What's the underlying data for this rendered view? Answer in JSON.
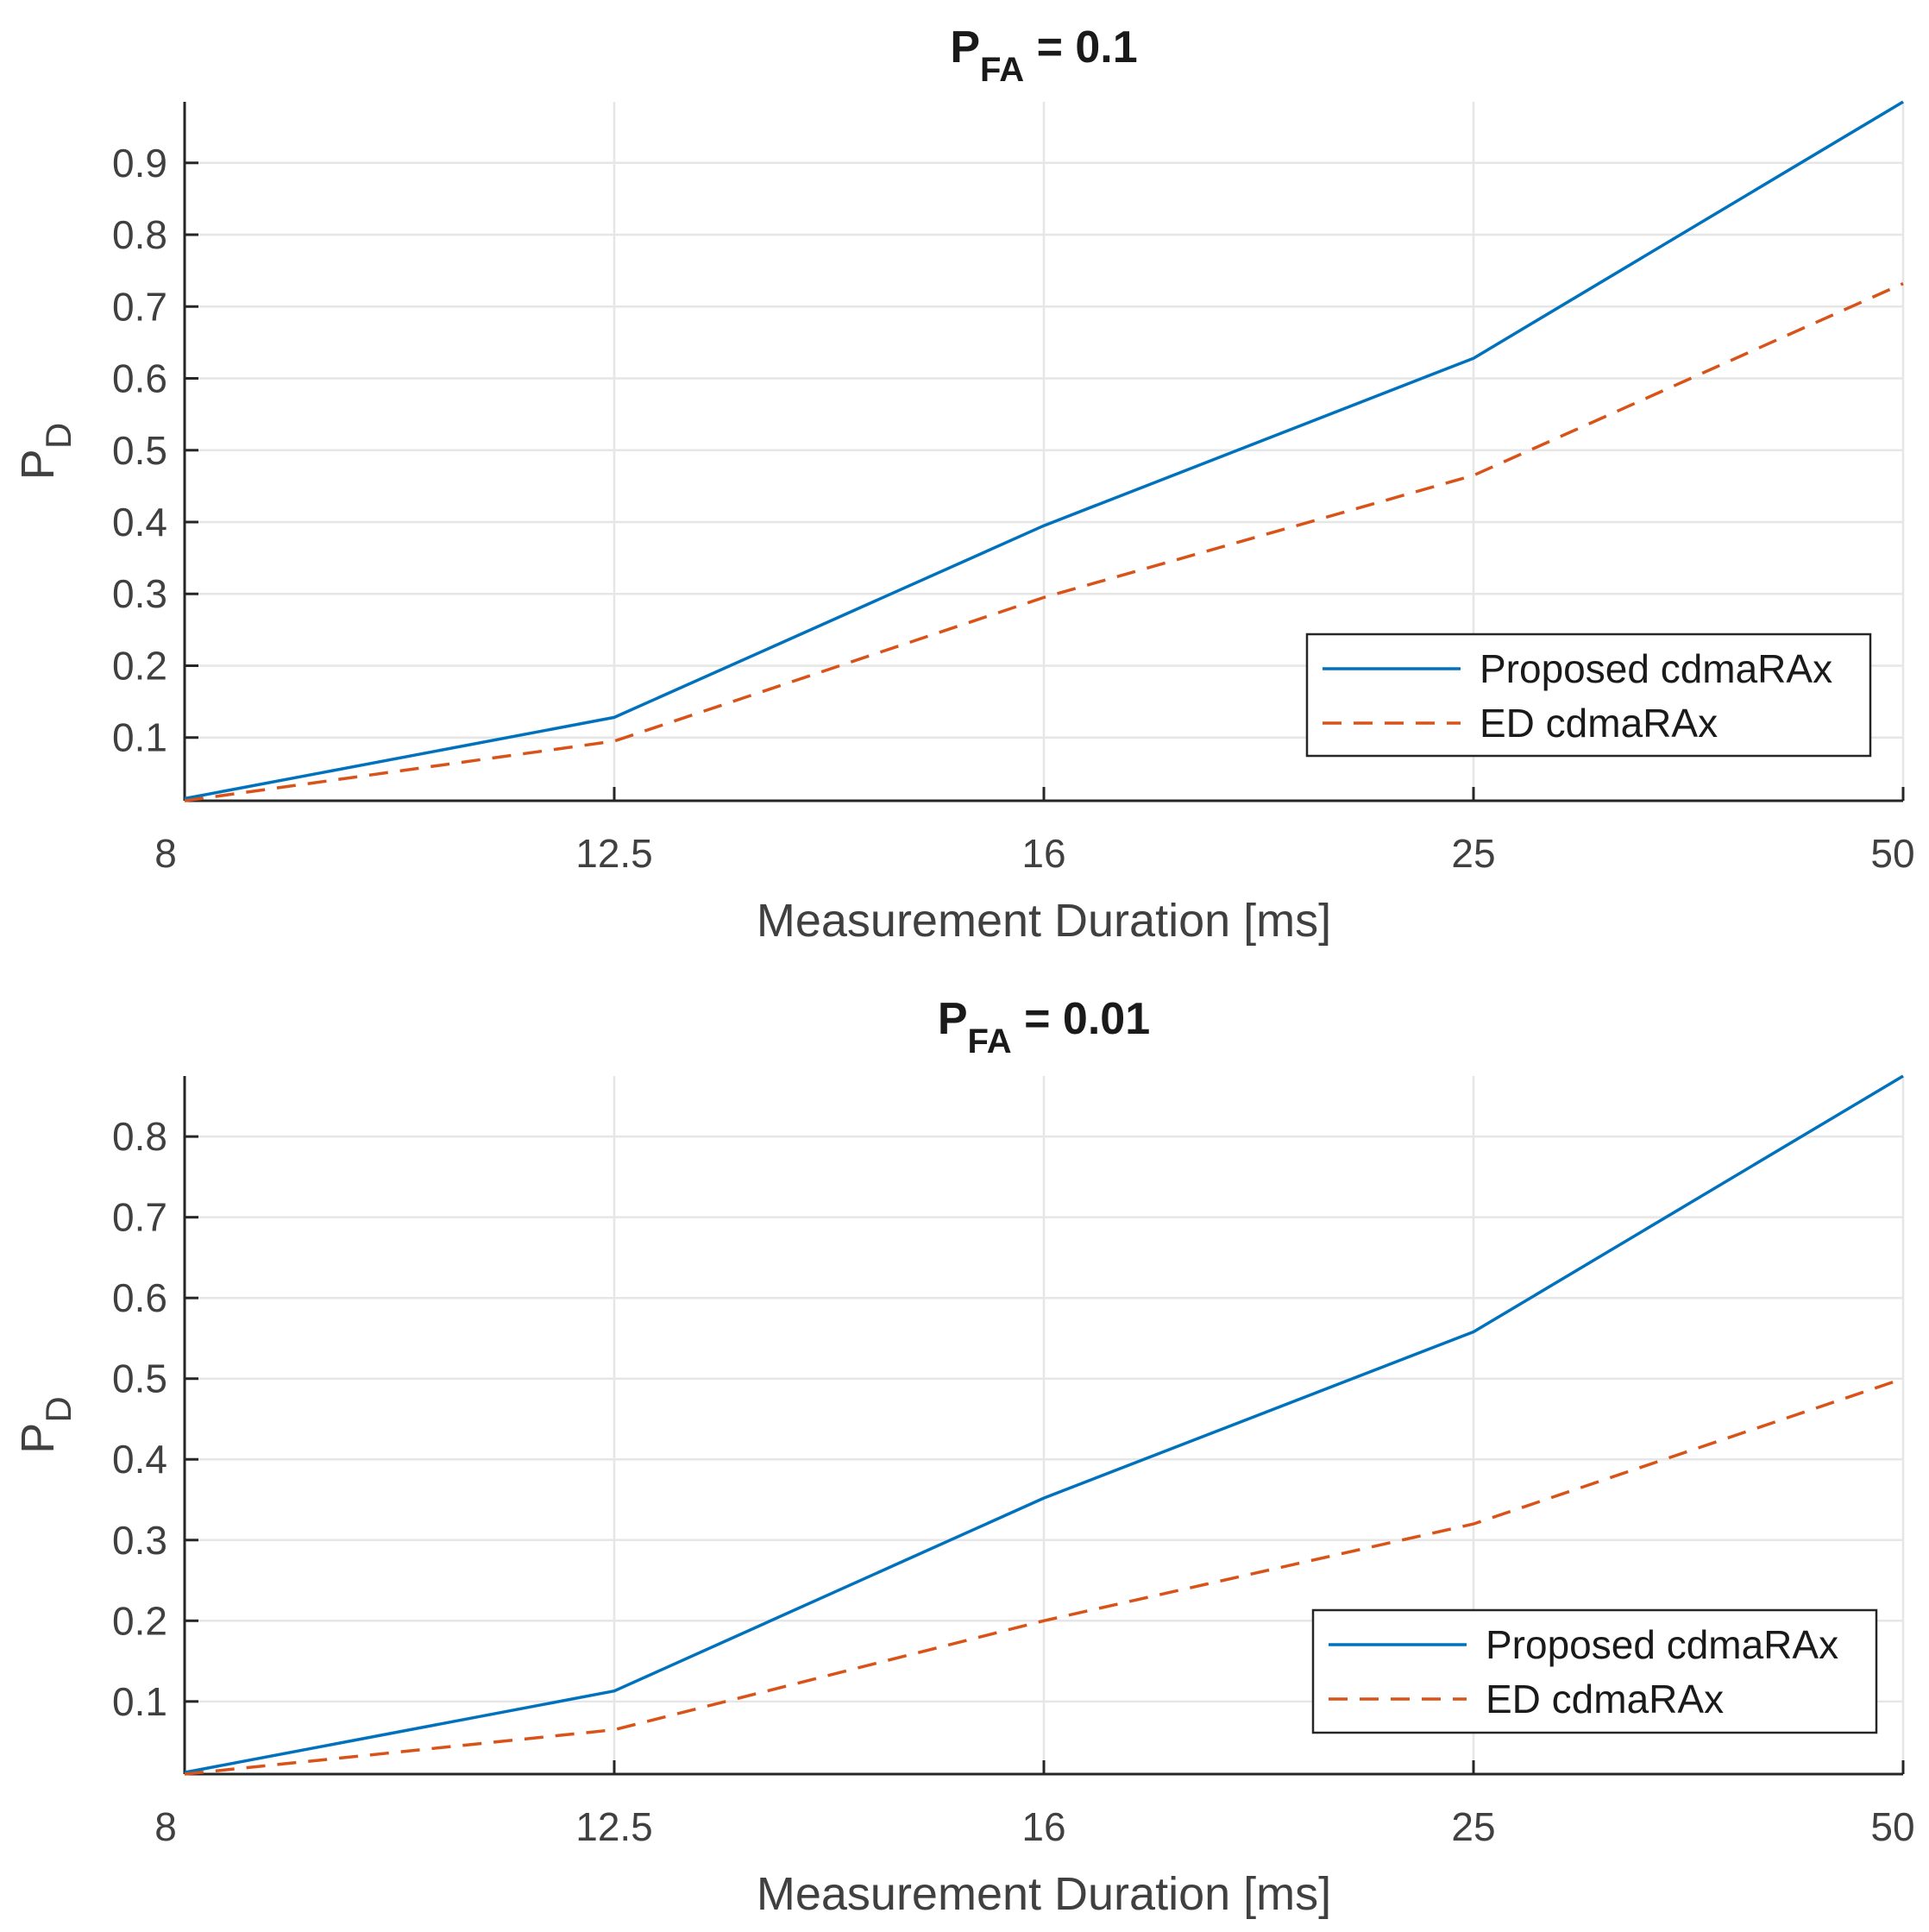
{
  "chart_data": [
    {
      "type": "line",
      "title": {
        "main": "P",
        "sub": "FA",
        "suffix": " = 0.1"
      },
      "xlabel": "Measurement Duration [ms]",
      "ylabel": {
        "main": "P",
        "sub": "D"
      },
      "categories": [
        "8",
        "12.5",
        "16",
        "25",
        "50"
      ],
      "yticks": [
        "0.1",
        "0.2",
        "0.3",
        "0.4",
        "0.5",
        "0.6",
        "0.7",
        "0.8",
        "0.9"
      ],
      "ylim": [
        0.012,
        0.985
      ],
      "grid": true,
      "legend_position": "bottom-right",
      "series": [
        {
          "name": "Proposed cdmaRAx",
          "style": "solid",
          "color": "#0072BD",
          "values": [
            0.015,
            0.128,
            0.395,
            0.628,
            0.985
          ]
        },
        {
          "name": "ED cdmaRAx",
          "style": "dashed",
          "color": "#D95319",
          "values": [
            0.012,
            0.095,
            0.295,
            0.465,
            0.732
          ]
        }
      ]
    },
    {
      "type": "line",
      "title": {
        "main": "P",
        "sub": "FA",
        "suffix": " = 0.01"
      },
      "xlabel": "Measurement Duration [ms]",
      "ylabel": {
        "main": "P",
        "sub": "D"
      },
      "categories": [
        "8",
        "12.5",
        "16",
        "25",
        "50"
      ],
      "yticks": [
        "0.1",
        "0.2",
        "0.3",
        "0.4",
        "0.5",
        "0.6",
        "0.7",
        "0.8"
      ],
      "ylim": [
        0.01,
        0.875
      ],
      "grid": true,
      "legend_position": "bottom-right",
      "series": [
        {
          "name": "Proposed cdmaRAx",
          "style": "solid",
          "color": "#0072BD",
          "values": [
            0.012,
            0.113,
            0.352,
            0.558,
            0.875
          ]
        },
        {
          "name": "ED cdmaRAx",
          "style": "dashed",
          "color": "#D95319",
          "values": [
            0.01,
            0.065,
            0.2,
            0.32,
            0.5
          ]
        }
      ]
    }
  ]
}
